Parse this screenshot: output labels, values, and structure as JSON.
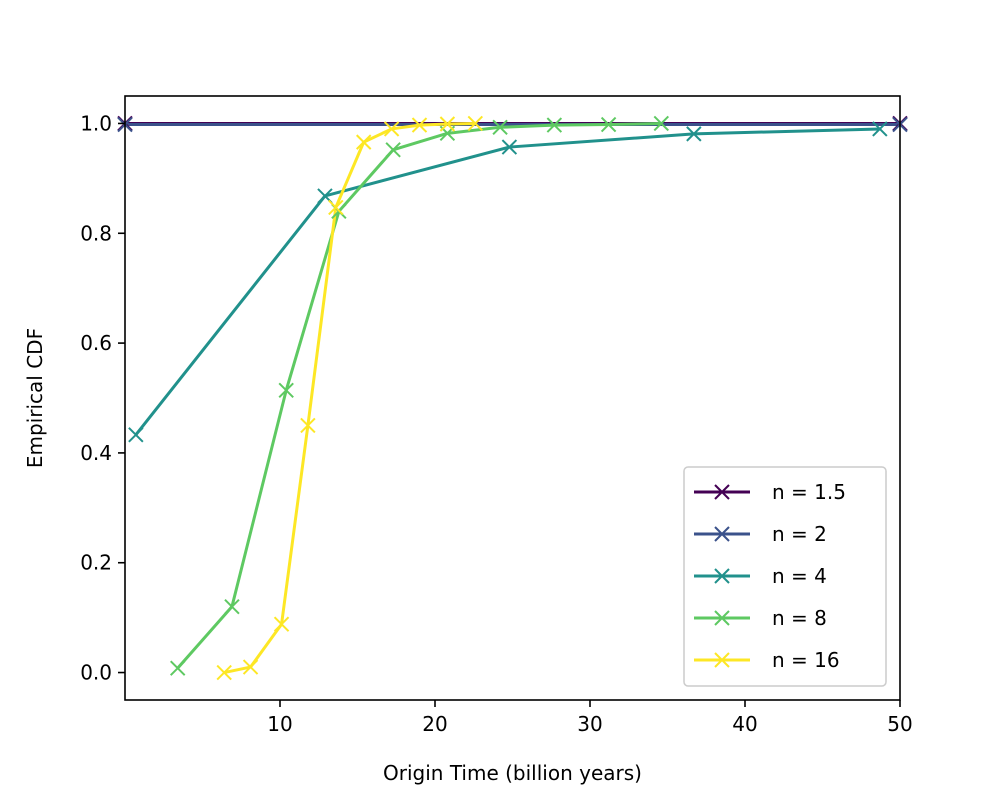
{
  "chart_data": {
    "type": "line",
    "title": "",
    "xlabel": "Origin Time (billion years)",
    "ylabel": "Empirical CDF",
    "xlim": [
      0,
      50
    ],
    "ylim": [
      -0.05,
      1.05
    ],
    "xticks": [
      10,
      20,
      30,
      40,
      50
    ],
    "xtick_labels": [
      "10",
      "20",
      "30",
      "40",
      "50"
    ],
    "yticks": [
      0.0,
      0.2,
      0.4,
      0.6,
      0.8,
      1.0
    ],
    "ytick_labels": [
      "0.0",
      "0.2",
      "0.4",
      "0.6",
      "0.8",
      "1.0"
    ],
    "grid": false,
    "legend_position": "bottom-right",
    "marker": "x",
    "series": [
      {
        "name": "n = 1.5",
        "color": "#440154",
        "x": [
          0.0,
          50.0
        ],
        "y": [
          1.0,
          1.0
        ]
      },
      {
        "name": "n = 2",
        "color": "#3b528b",
        "x": [
          0.0,
          50.0
        ],
        "y": [
          0.998,
          0.998
        ]
      },
      {
        "name": "n = 4",
        "color": "#21918c",
        "x": [
          0.7,
          12.9,
          24.8,
          36.7,
          48.7
        ],
        "y": [
          0.433,
          0.868,
          0.957,
          0.981,
          0.99
        ]
      },
      {
        "name": "n = 8",
        "color": "#5ec962",
        "x": [
          3.4,
          6.9,
          10.4,
          13.8,
          17.3,
          20.8,
          24.2,
          27.7,
          31.2,
          34.6
        ],
        "y": [
          0.008,
          0.12,
          0.514,
          0.84,
          0.952,
          0.982,
          0.993,
          0.997,
          0.998,
          1.0
        ]
      },
      {
        "name": "n = 16",
        "color": "#fde725",
        "x": [
          6.4,
          8.1,
          10.1,
          11.8,
          13.6,
          15.4,
          17.2,
          19.0,
          20.8,
          22.6
        ],
        "y": [
          0.0,
          0.01,
          0.088,
          0.45,
          0.847,
          0.966,
          0.99,
          0.997,
          0.999,
          1.0
        ]
      }
    ]
  }
}
